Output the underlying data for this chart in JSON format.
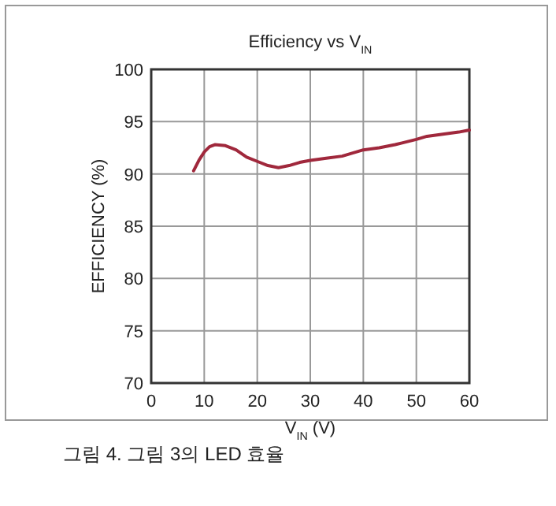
{
  "chart_data": {
    "type": "line",
    "title": "Efficiency vs V$_{IN}$",
    "xlabel": "V$_{IN}$ (V)",
    "ylabel": "EFFICIENCY (%)",
    "annotations": [
      "그림 4. 그림 3의 LED 효율"
    ],
    "x": [
      8,
      9,
      10,
      11,
      12,
      14,
      16,
      18,
      20,
      22,
      24,
      26,
      28,
      30,
      33,
      36,
      38,
      40,
      43,
      46,
      50,
      52,
      55,
      58,
      60
    ],
    "series": [
      {
        "color": "#a0283c",
        "values": [
          90.3,
          91.3,
          92.1,
          92.6,
          92.8,
          92.7,
          92.3,
          91.6,
          91.2,
          90.8,
          90.6,
          90.8,
          91.1,
          91.3,
          91.5,
          91.7,
          92.0,
          92.3,
          92.5,
          92.8,
          93.3,
          93.6,
          93.8,
          94.0,
          94.2
        ]
      }
    ],
    "xlim": [
      0,
      60
    ],
    "ylim": [
      70,
      100
    ],
    "xticks": [
      0,
      10,
      20,
      30,
      40,
      50,
      60
    ],
    "yticks": [
      70,
      75,
      80,
      85,
      90,
      95,
      100
    ],
    "grid": true,
    "marker": "none",
    "line_style": "solid"
  }
}
